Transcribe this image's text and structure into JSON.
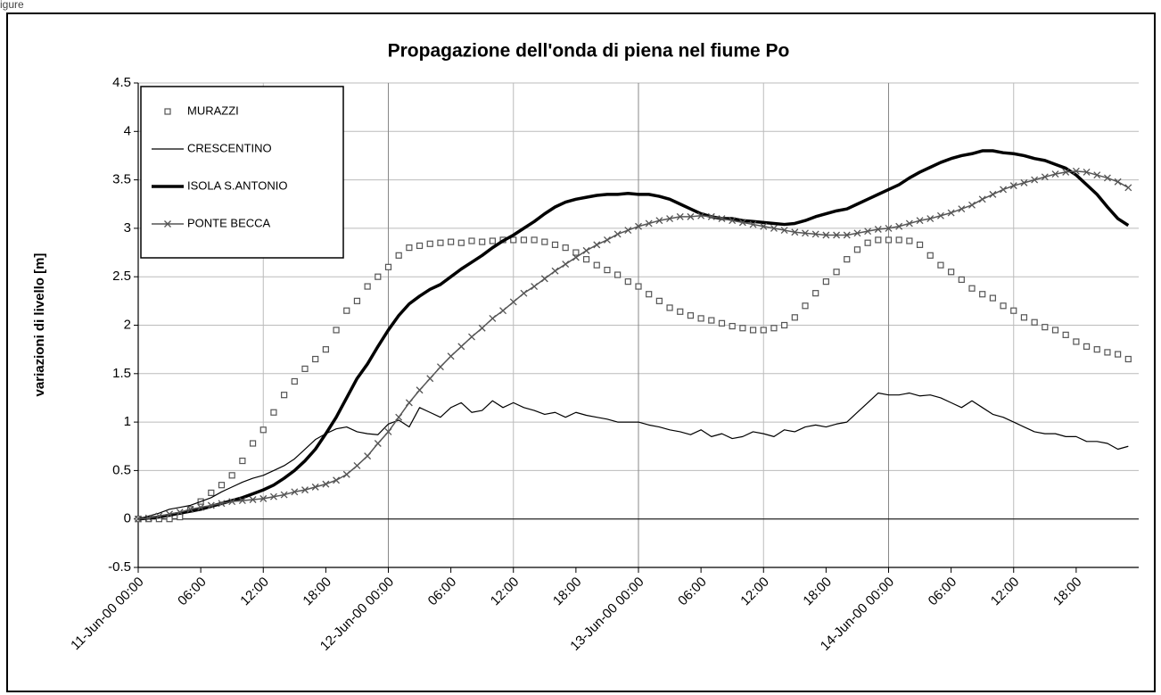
{
  "figure_label": "igure",
  "chart_data": {
    "type": "line",
    "title": "Propagazione dell'onda di piena nel fiume Po",
    "ylabel": "variazioni di livello [m]",
    "x": [
      0,
      1,
      2,
      3,
      4,
      5,
      6,
      7,
      8,
      9,
      10,
      11,
      12,
      13,
      14,
      15,
      16,
      17,
      18,
      19,
      20,
      21,
      22,
      23,
      24,
      25,
      26,
      27,
      28,
      29,
      30,
      31,
      32,
      33,
      34,
      35,
      36,
      37,
      38,
      39,
      40,
      41,
      42,
      43,
      44,
      45,
      46,
      47,
      48,
      49,
      50,
      51,
      52,
      53,
      54,
      55,
      56,
      57,
      58,
      59,
      60,
      61,
      62,
      63,
      64,
      65,
      66,
      67,
      68,
      69,
      70,
      71,
      72,
      73,
      74,
      75,
      76,
      77,
      78,
      79,
      80,
      81,
      82,
      83,
      84,
      85,
      86,
      87,
      88,
      89,
      90,
      91,
      92,
      93,
      94,
      95
    ],
    "xlim": [
      0,
      96
    ],
    "xticks": [
      {
        "value": 0,
        "label": "11-Jun-00 00:00"
      },
      {
        "value": 6,
        "label": "06:00"
      },
      {
        "value": 12,
        "label": "12:00"
      },
      {
        "value": 18,
        "label": "18:00"
      },
      {
        "value": 24,
        "label": "12-Jun-00 00:00"
      },
      {
        "value": 30,
        "label": "06:00"
      },
      {
        "value": 36,
        "label": "12:00"
      },
      {
        "value": 42,
        "label": "18:00"
      },
      {
        "value": 48,
        "label": "13-Jun-00 00:00"
      },
      {
        "value": 54,
        "label": "06:00"
      },
      {
        "value": 60,
        "label": "12:00"
      },
      {
        "value": 66,
        "label": "18:00"
      },
      {
        "value": 72,
        "label": "14-Jun-00 00:00"
      },
      {
        "value": 78,
        "label": "06:00"
      },
      {
        "value": 84,
        "label": "12:00"
      },
      {
        "value": 90,
        "label": "18:00"
      }
    ],
    "ylim": [
      -0.5,
      4.5
    ],
    "yticks": [
      -0.5,
      0,
      0.5,
      1,
      1.5,
      2,
      2.5,
      3,
      3.5,
      4,
      4.5
    ],
    "grid": true,
    "legend": "upper left",
    "series": [
      {
        "name": "MURAZZI",
        "color": "#555555",
        "marker": "square",
        "line_width": 0,
        "values": [
          0,
          0,
          0,
          0,
          0.02,
          0.1,
          0.18,
          0.27,
          0.35,
          0.45,
          0.6,
          0.78,
          0.92,
          1.1,
          1.28,
          1.42,
          1.55,
          1.65,
          1.75,
          1.95,
          2.15,
          2.25,
          2.4,
          2.5,
          2.6,
          2.72,
          2.8,
          2.82,
          2.84,
          2.85,
          2.86,
          2.85,
          2.87,
          2.86,
          2.87,
          2.88,
          2.88,
          2.88,
          2.88,
          2.86,
          2.83,
          2.8,
          2.75,
          2.68,
          2.62,
          2.57,
          2.52,
          2.45,
          2.4,
          2.32,
          2.25,
          2.18,
          2.14,
          2.1,
          2.07,
          2.05,
          2.02,
          1.99,
          1.97,
          1.95,
          1.95,
          1.97,
          2.0,
          2.08,
          2.2,
          2.33,
          2.45,
          2.55,
          2.68,
          2.78,
          2.85,
          2.88,
          2.88,
          2.88,
          2.87,
          2.83,
          2.72,
          2.62,
          2.55,
          2.47,
          2.38,
          2.32,
          2.28,
          2.2,
          2.15,
          2.08,
          2.03,
          1.98,
          1.95,
          1.9,
          1.83,
          1.78,
          1.75,
          1.72,
          1.7,
          1.65
        ]
      },
      {
        "name": "CRESCENTINO",
        "color": "#000000",
        "marker": "none",
        "line_width": 1.2,
        "values": [
          0,
          0.03,
          0.06,
          0.1,
          0.12,
          0.14,
          0.18,
          0.22,
          0.28,
          0.33,
          0.38,
          0.42,
          0.45,
          0.5,
          0.55,
          0.62,
          0.72,
          0.82,
          0.88,
          0.93,
          0.95,
          0.9,
          0.88,
          0.87,
          0.98,
          1.02,
          0.95,
          1.15,
          1.1,
          1.05,
          1.15,
          1.2,
          1.1,
          1.12,
          1.22,
          1.15,
          1.2,
          1.15,
          1.12,
          1.08,
          1.1,
          1.05,
          1.1,
          1.07,
          1.05,
          1.03,
          1.0,
          1.0,
          1.0,
          0.97,
          0.95,
          0.92,
          0.9,
          0.87,
          0.92,
          0.85,
          0.88,
          0.83,
          0.85,
          0.9,
          0.88,
          0.85,
          0.92,
          0.9,
          0.95,
          0.97,
          0.95,
          0.98,
          1.0,
          1.1,
          1.2,
          1.3,
          1.28,
          1.28,
          1.3,
          1.27,
          1.28,
          1.25,
          1.2,
          1.15,
          1.22,
          1.15,
          1.08,
          1.05,
          1.0,
          0.95,
          0.9,
          0.88,
          0.88,
          0.85,
          0.85,
          0.8,
          0.8,
          0.78,
          0.72,
          0.75
        ]
      },
      {
        "name": "ISOLA S.ANTONIO",
        "color": "#000000",
        "marker": "none",
        "line_width": 3.5,
        "values": [
          0,
          0.01,
          0.02,
          0.04,
          0.06,
          0.08,
          0.1,
          0.13,
          0.16,
          0.19,
          0.22,
          0.26,
          0.3,
          0.35,
          0.42,
          0.5,
          0.6,
          0.72,
          0.88,
          1.05,
          1.25,
          1.45,
          1.6,
          1.78,
          1.95,
          2.1,
          2.22,
          2.3,
          2.37,
          2.42,
          2.5,
          2.58,
          2.65,
          2.72,
          2.8,
          2.87,
          2.93,
          3.0,
          3.07,
          3.15,
          3.22,
          3.27,
          3.3,
          3.32,
          3.34,
          3.35,
          3.35,
          3.36,
          3.35,
          3.35,
          3.33,
          3.3,
          3.25,
          3.2,
          3.15,
          3.12,
          3.1,
          3.1,
          3.08,
          3.07,
          3.06,
          3.05,
          3.04,
          3.05,
          3.08,
          3.12,
          3.15,
          3.18,
          3.2,
          3.25,
          3.3,
          3.35,
          3.4,
          3.45,
          3.52,
          3.58,
          3.63,
          3.68,
          3.72,
          3.75,
          3.77,
          3.8,
          3.8,
          3.78,
          3.77,
          3.75,
          3.72,
          3.7,
          3.66,
          3.62,
          3.55,
          3.45,
          3.35,
          3.22,
          3.1,
          3.03
        ]
      },
      {
        "name": "PONTE BECCA",
        "color": "#555555",
        "marker": "x",
        "line_width": 1.5,
        "values": [
          0,
          0.01,
          0.03,
          0.05,
          0.07,
          0.1,
          0.12,
          0.14,
          0.16,
          0.18,
          0.19,
          0.2,
          0.21,
          0.23,
          0.25,
          0.28,
          0.3,
          0.33,
          0.36,
          0.4,
          0.46,
          0.55,
          0.65,
          0.78,
          0.9,
          1.05,
          1.2,
          1.33,
          1.45,
          1.57,
          1.68,
          1.78,
          1.88,
          1.97,
          2.07,
          2.15,
          2.24,
          2.33,
          2.4,
          2.48,
          2.56,
          2.63,
          2.7,
          2.77,
          2.83,
          2.88,
          2.94,
          2.98,
          3.02,
          3.05,
          3.08,
          3.1,
          3.12,
          3.12,
          3.13,
          3.12,
          3.1,
          3.08,
          3.06,
          3.04,
          3.02,
          3.0,
          2.98,
          2.96,
          2.95,
          2.94,
          2.93,
          2.93,
          2.93,
          2.95,
          2.97,
          2.99,
          3.0,
          3.02,
          3.05,
          3.08,
          3.1,
          3.13,
          3.16,
          3.2,
          3.24,
          3.3,
          3.35,
          3.4,
          3.44,
          3.47,
          3.5,
          3.53,
          3.56,
          3.58,
          3.59,
          3.58,
          3.55,
          3.52,
          3.48,
          3.42
        ]
      }
    ]
  }
}
